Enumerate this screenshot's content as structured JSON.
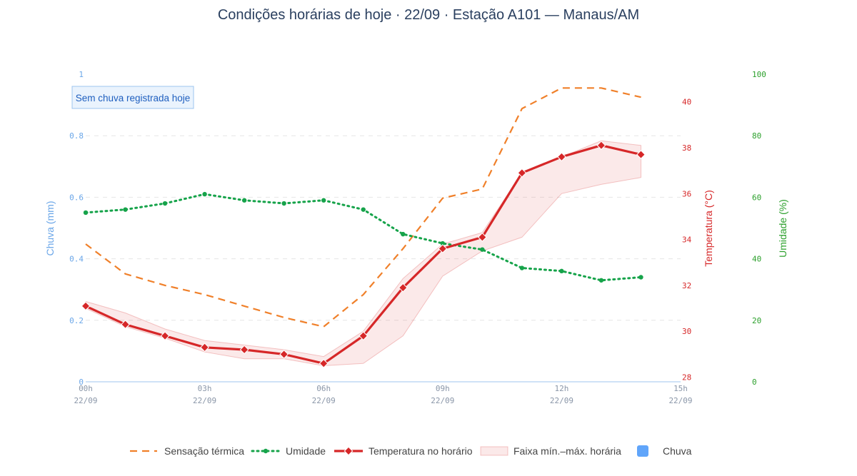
{
  "chart_data": {
    "type": "line",
    "title": "Condições horárias de hoje · 22/09 · Estação A101 — Manaus/AM",
    "x": [
      "00h",
      "01h",
      "02h",
      "03h",
      "04h",
      "05h",
      "06h",
      "07h",
      "08h",
      "09h",
      "10h",
      "11h",
      "12h",
      "13h",
      "14h"
    ],
    "x_ticks": [
      {
        "h": 0,
        "line1": "00h",
        "line2": "22/09"
      },
      {
        "h": 3,
        "line1": "03h",
        "line2": "22/09"
      },
      {
        "h": 6,
        "line1": "06h",
        "line2": "22/09"
      },
      {
        "h": 9,
        "line1": "09h",
        "line2": "22/09"
      },
      {
        "h": 12,
        "line1": "12h",
        "line2": "22/09"
      },
      {
        "h": 15,
        "line1": "15h",
        "line2": "22/09"
      }
    ],
    "xlim": [
      0,
      15
    ],
    "axes": {
      "rain": {
        "label": "Chuva (mm)",
        "range": [
          0,
          1
        ],
        "ticks": [
          "0",
          "0.2",
          "0.4",
          "0.6",
          "0.8",
          "1"
        ],
        "tick_values": [
          0,
          0.2,
          0.4,
          0.6,
          0.8,
          1
        ],
        "color": "#6aa6e8"
      },
      "temperature": {
        "label": "Temperatura (°C)",
        "range": [
          27.8,
          41.2
        ],
        "ticks": [
          "28",
          "30",
          "32",
          "34",
          "36",
          "38",
          "40"
        ],
        "tick_values": [
          28,
          30,
          32,
          34,
          36,
          38,
          40
        ],
        "color": "#d62728"
      },
      "humidity": {
        "label": "Umidade (%)",
        "range": [
          0,
          100
        ],
        "ticks": [
          "0",
          "20",
          "40",
          "60",
          "80",
          "100"
        ],
        "tick_values": [
          0,
          20,
          40,
          60,
          80,
          100
        ],
        "color": "#2ca02c"
      }
    },
    "series": [
      {
        "name": "Sensação térmica",
        "axis": "temperature",
        "style": "dash",
        "color": "#f0802a",
        "values": [
          33.8,
          32.5,
          32.0,
          31.6,
          31.1,
          30.6,
          30.2,
          31.6,
          33.6,
          35.8,
          36.2,
          39.7,
          40.6,
          40.6,
          40.2
        ]
      },
      {
        "name": "Umidade",
        "axis": "humidity",
        "style": "dot",
        "color": "#16a34a",
        "values": [
          55,
          56,
          58,
          61,
          59,
          58,
          59,
          56,
          48,
          45,
          43,
          37,
          36,
          33,
          34
        ]
      },
      {
        "name": "Temperatura no horário",
        "axis": "temperature",
        "style": "solid",
        "color": "#d62728",
        "values": [
          31.1,
          30.3,
          29.8,
          29.3,
          29.2,
          29.0,
          28.6,
          29.8,
          31.9,
          33.6,
          34.1,
          36.9,
          37.6,
          38.1,
          37.7
        ]
      },
      {
        "name": "Faixa mín.–máx. horária",
        "axis": "temperature",
        "style": "band",
        "color": "#f4cccc",
        "upper": [
          31.3,
          30.8,
          30.1,
          29.6,
          29.4,
          29.2,
          28.9,
          30.0,
          32.3,
          33.8,
          34.3,
          36.9,
          37.6,
          38.3,
          38.1
        ],
        "lower": [
          31.0,
          30.2,
          29.7,
          29.1,
          28.8,
          28.8,
          28.5,
          28.6,
          29.8,
          32.4,
          33.5,
          34.1,
          36.0,
          36.4,
          36.7
        ]
      },
      {
        "name": "Chuva",
        "axis": "rain",
        "style": "bar",
        "color": "#60a5fa",
        "values": [
          0,
          0,
          0,
          0,
          0,
          0,
          0,
          0,
          0,
          0,
          0,
          0,
          0,
          0,
          0
        ]
      }
    ],
    "annotation": "Sem chuva registrada hoje",
    "grid": true,
    "legend": "bottom"
  }
}
